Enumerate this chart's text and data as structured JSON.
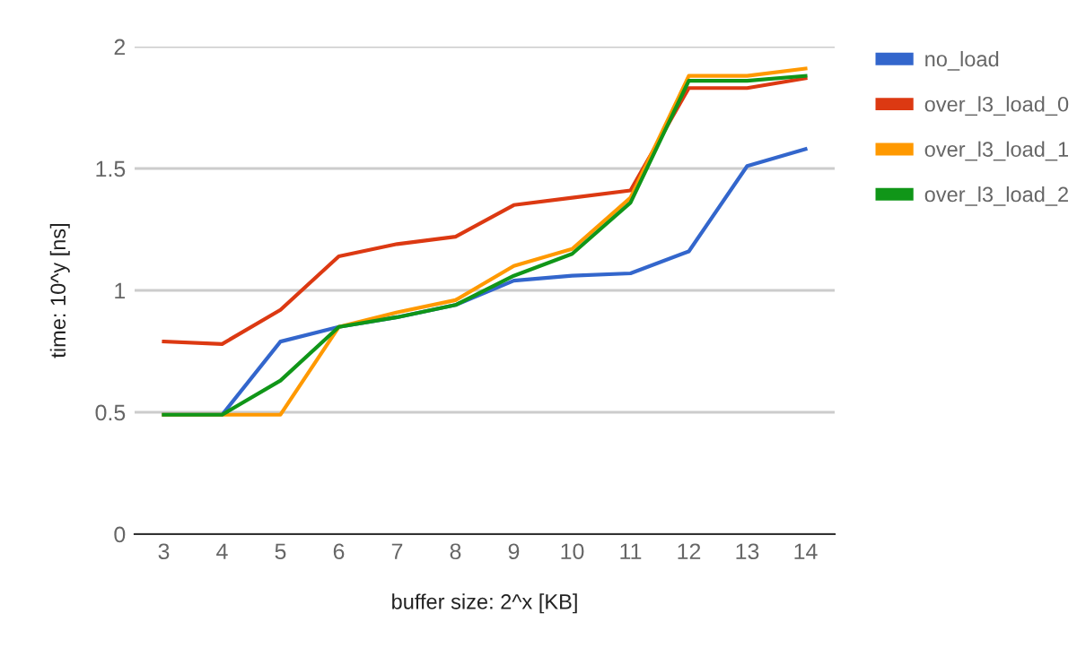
{
  "chart_data": {
    "type": "line",
    "xlabel": "buffer size: 2^x [KB]",
    "ylabel": "time: 10^y [ns]",
    "categories": [
      "3",
      "4",
      "5",
      "6",
      "7",
      "8",
      "9",
      "10",
      "11",
      "12",
      "13",
      "14"
    ],
    "series": [
      {
        "name": "no_load",
        "color": "#3366cc",
        "values": [
          0.49,
          0.49,
          0.79,
          0.85,
          0.89,
          0.94,
          1.04,
          1.06,
          1.07,
          1.16,
          1.51,
          1.58
        ]
      },
      {
        "name": "over_l3_load_0",
        "color": "#dc3912",
        "values": [
          0.79,
          0.78,
          0.92,
          1.14,
          1.19,
          1.22,
          1.35,
          1.38,
          1.41,
          1.83,
          1.83,
          1.87
        ]
      },
      {
        "name": "over_l3_load_1",
        "color": "#ff9900",
        "values": [
          0.49,
          0.49,
          0.49,
          0.85,
          0.91,
          0.96,
          1.1,
          1.17,
          1.38,
          1.88,
          1.88,
          1.91
        ]
      },
      {
        "name": "over_l3_load_2",
        "color": "#109618",
        "values": [
          0.49,
          0.49,
          0.63,
          0.85,
          0.89,
          0.94,
          1.06,
          1.15,
          1.36,
          1.86,
          1.86,
          1.88
        ]
      }
    ],
    "ylim": [
      0,
      2
    ],
    "yticks": [
      0,
      0.5,
      1,
      1.5,
      2
    ],
    "grid": "y",
    "legend": "top right",
    "marker": "none",
    "line_style": "solid"
  }
}
